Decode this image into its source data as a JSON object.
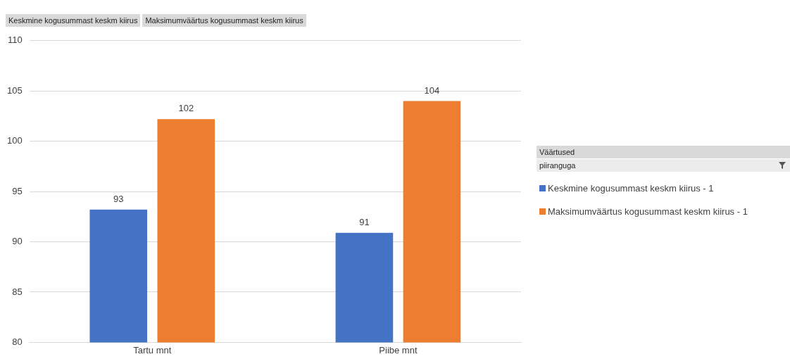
{
  "chart_data": {
    "type": "bar",
    "categories": [
      "Tartu mnt",
      "Piibe mnt"
    ],
    "series": [
      {
        "name": "Keskmine kogusummast keskm kiirus - 1",
        "color": "#4472c4",
        "values": [
          93.2,
          90.9
        ],
        "value_labels": [
          "93",
          "91"
        ]
      },
      {
        "name": "Maksimumväärtus kogusummast keskm kiirus - 1",
        "color": "#ed7d31",
        "values": [
          102.2,
          104.0
        ],
        "value_labels": [
          "102",
          "104"
        ]
      }
    ],
    "ylim": [
      80,
      110
    ],
    "yticks": [
      80,
      85,
      90,
      95,
      100,
      105,
      110
    ],
    "grid": "y",
    "legend": "right",
    "legend_title": "Väärtused",
    "annotations": [
      "Keskmine kogusummast keskm kiirus",
      "Maksimumväärtus kogusummast keskm kiirus",
      "piiranguga"
    ]
  }
}
